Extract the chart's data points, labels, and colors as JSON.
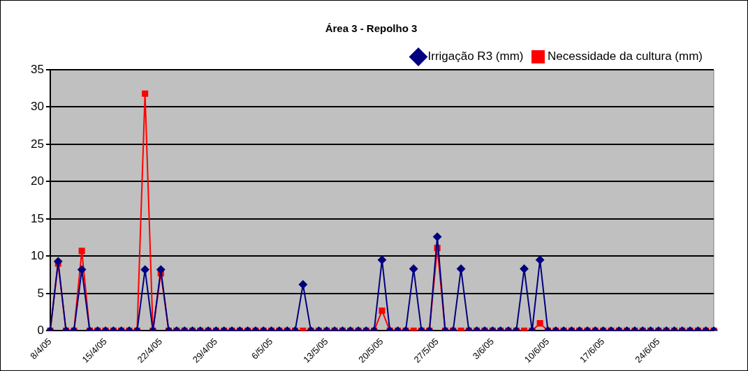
{
  "chart_data": {
    "type": "line",
    "title": "Área 3 - Repolho 3",
    "categories": [
      "8/4/05",
      null,
      null,
      null,
      null,
      null,
      null,
      "15/4/05",
      null,
      null,
      null,
      null,
      null,
      null,
      "22/4/05",
      null,
      null,
      null,
      null,
      null,
      null,
      "29/4/05",
      null,
      null,
      null,
      null,
      null,
      null,
      "6/5/05",
      null,
      null,
      null,
      null,
      null,
      null,
      "13/5/05",
      null,
      null,
      null,
      null,
      null,
      null,
      "20/5/05",
      null,
      null,
      null,
      null,
      null,
      null,
      "27/5/05",
      null,
      null,
      null,
      null,
      null,
      null,
      "3/6/05",
      null,
      null,
      null,
      null,
      null,
      null,
      "10/6/05",
      null,
      null,
      null,
      null,
      null,
      null,
      "17/6/05",
      null,
      null,
      null,
      null,
      null,
      null,
      "24/6/05",
      null,
      null,
      null,
      null,
      null,
      null,
      null
    ],
    "series": [
      {
        "name": "Irrigação R3 (mm)",
        "color": "#000080",
        "marker": "diamond",
        "values": [
          0,
          9.3,
          0,
          0,
          8.2,
          0,
          0,
          0,
          0,
          0,
          0,
          0,
          8.2,
          0,
          8.2,
          0,
          0,
          0,
          0,
          0,
          0,
          0,
          0,
          0,
          0,
          0,
          0,
          0,
          0,
          0,
          0,
          0,
          6.2,
          0,
          0,
          0,
          0,
          0,
          0,
          0,
          0,
          0,
          9.5,
          0,
          0,
          0,
          8.3,
          0,
          0,
          12.6,
          0,
          0,
          8.3,
          0,
          0,
          0,
          0,
          0,
          0,
          0,
          8.3,
          0,
          9.5,
          0,
          0,
          0,
          0,
          0,
          0,
          0,
          0,
          0,
          0,
          0,
          0,
          0,
          0,
          0,
          0,
          0,
          0,
          0,
          0,
          0,
          0
        ]
      },
      {
        "name": "Necessidade da cultura (mm)",
        "color": "#ff0000",
        "marker": "square",
        "values": [
          0,
          9.0,
          0,
          0,
          10.7,
          0,
          0,
          0,
          0,
          0,
          0,
          0,
          31.8,
          0,
          7.7,
          0,
          0,
          0,
          0,
          0,
          0,
          0,
          0,
          0,
          0,
          0,
          0,
          0,
          0,
          0,
          0,
          0,
          0,
          0,
          0,
          0,
          0,
          0,
          0,
          0,
          0,
          0,
          2.7,
          0,
          0,
          0,
          0,
          0,
          0,
          11.1,
          0,
          0,
          0,
          0,
          0,
          0,
          0,
          0,
          0,
          0,
          0,
          0,
          1.0,
          0,
          0,
          0,
          0,
          0,
          0,
          0,
          0,
          0,
          0,
          0,
          0,
          0,
          0,
          0,
          0,
          0,
          0,
          0,
          0,
          0,
          0
        ]
      }
    ],
    "ylim": [
      0,
      35
    ],
    "yticks": [
      0,
      5,
      10,
      15,
      20,
      25,
      30,
      35
    ],
    "grid": "y",
    "legend": "top right"
  }
}
